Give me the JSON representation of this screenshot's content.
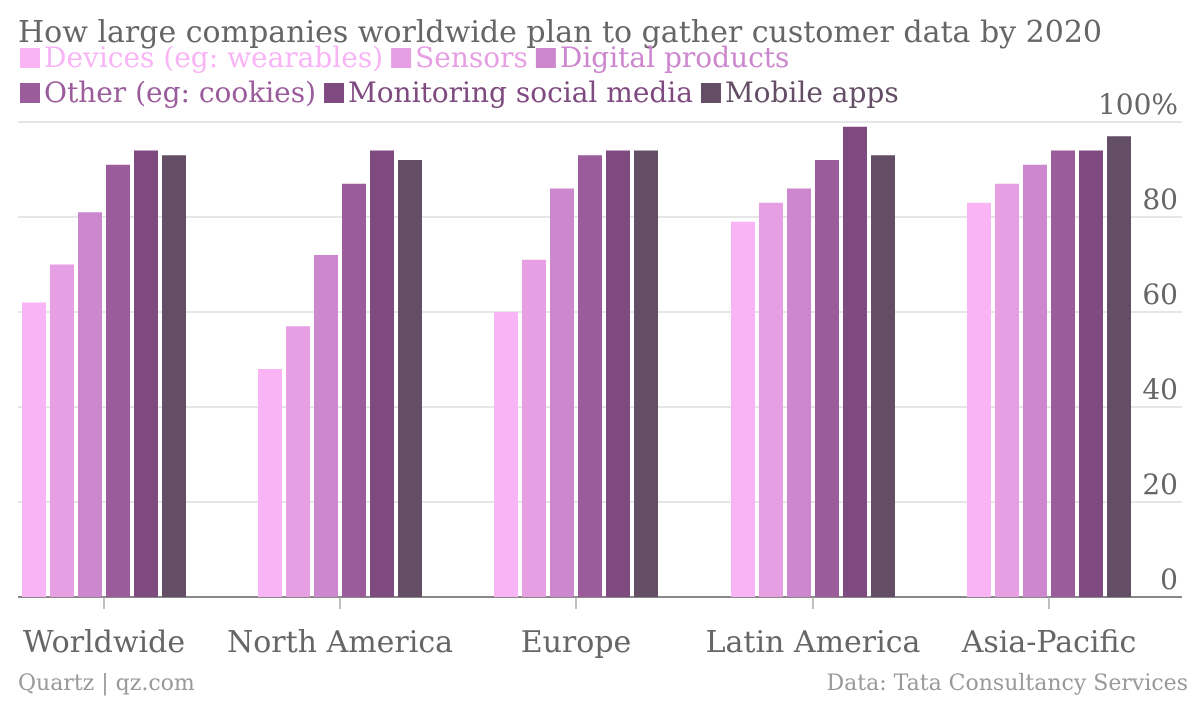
{
  "chart_data": {
    "type": "bar",
    "title": "How large companies worldwide plan to gather customer data by 2020",
    "categories": [
      "Worldwide",
      "North America",
      "Europe",
      "Latin America",
      "Asia-Pacific"
    ],
    "series": [
      {
        "name": "Devices (eg: wearables)",
        "color": "#f9b4f6",
        "values": [
          62,
          48,
          60,
          79,
          83
        ]
      },
      {
        "name": "Sensors",
        "color": "#e79fe4",
        "values": [
          70,
          57,
          71,
          83,
          87
        ]
      },
      {
        "name": "Digital products",
        "color": "#cd87cf",
        "values": [
          81,
          72,
          86,
          86,
          91
        ]
      },
      {
        "name": "Other (eg: cookies)",
        "color": "#9b5c9b",
        "values": [
          91,
          87,
          93,
          92,
          94
        ]
      },
      {
        "name": "Monitoring social media",
        "color": "#7f4a7f",
        "values": [
          94,
          94,
          94,
          99,
          94
        ]
      },
      {
        "name": "Mobile apps",
        "color": "#644e66",
        "values": [
          93,
          92,
          94,
          93,
          97
        ]
      }
    ],
    "ylim": [
      0,
      100
    ],
    "y_ticks": [
      "0",
      "20",
      "40",
      "60",
      "80",
      "100%"
    ],
    "y_tick_values": [
      0,
      20,
      40,
      60,
      80,
      100
    ],
    "y_axis_side": "right",
    "grid": true,
    "legend_position": "top-left"
  },
  "footer": {
    "source_left": "Quartz | qz.com",
    "source_right": "Data: Tata Consultancy Services"
  }
}
